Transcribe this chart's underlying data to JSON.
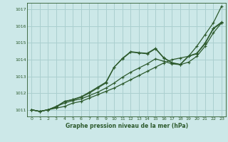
{
  "bg_color": "#cce8e8",
  "grid_color": "#aacfcf",
  "line_color": "#2d5a2d",
  "xlabel": "Graphe pression niveau de la mer (hPa)",
  "ylim": [
    1010.6,
    1017.4
  ],
  "xlim": [
    -0.5,
    23.5
  ],
  "yticks": [
    1011,
    1012,
    1013,
    1014,
    1015,
    1016,
    1017
  ],
  "xticks": [
    0,
    1,
    2,
    3,
    4,
    5,
    6,
    7,
    8,
    9,
    10,
    11,
    12,
    13,
    14,
    15,
    16,
    17,
    18,
    19,
    20,
    21,
    22,
    23
  ],
  "series": [
    [
      1011.0,
      1010.9,
      1011.0,
      1011.1,
      1011.2,
      1011.4,
      1011.5,
      1011.7,
      1011.9,
      1012.1,
      1012.3,
      1012.55,
      1012.8,
      1013.05,
      1013.3,
      1013.55,
      1013.8,
      1014.0,
      1014.1,
      1014.2,
      1014.8,
      1015.5,
      1016.2,
      1017.2
    ],
    [
      1011.0,
      1010.9,
      1011.0,
      1011.2,
      1011.4,
      1011.55,
      1011.65,
      1011.85,
      1012.05,
      1012.3,
      1012.6,
      1012.95,
      1013.25,
      1013.5,
      1013.75,
      1014.05,
      1013.9,
      1013.75,
      1013.7,
      1013.85,
      1014.2,
      1014.8,
      1015.6,
      1016.2
    ],
    [
      1011.0,
      1010.9,
      1011.0,
      1011.15,
      1011.5,
      1011.6,
      1011.75,
      1012.0,
      1012.3,
      1012.6,
      1013.55,
      1014.05,
      1014.45,
      1014.4,
      1014.35,
      1014.65,
      1014.1,
      1013.8,
      1013.7,
      1014.2,
      1014.35,
      1014.95,
      1015.85,
      1016.2
    ],
    [
      1011.0,
      1010.9,
      1011.0,
      1011.2,
      1011.5,
      1011.62,
      1011.78,
      1012.05,
      1012.35,
      1012.65,
      1013.55,
      1014.08,
      1014.48,
      1014.42,
      1014.38,
      1014.68,
      1014.12,
      1013.82,
      1013.72,
      1014.22,
      1014.38,
      1015.0,
      1015.88,
      1016.25
    ]
  ]
}
